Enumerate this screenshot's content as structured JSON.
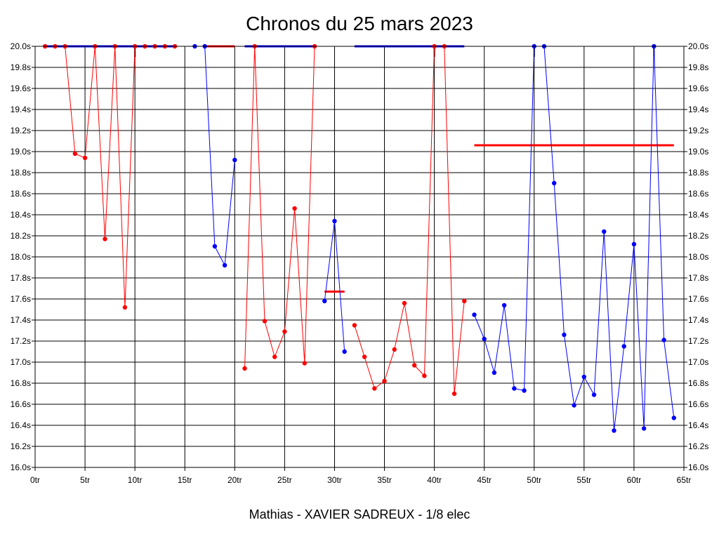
{
  "chart_data": {
    "type": "line",
    "title": "Chronos du 25 mars 2023",
    "subtitle": "Mathias - XAVIER SADREUX - 1/8 elec",
    "xlim": [
      0,
      65
    ],
    "ylim": [
      16.0,
      20.0
    ],
    "x_ticks": [
      0,
      5,
      10,
      15,
      20,
      25,
      30,
      35,
      40,
      45,
      50,
      55,
      60,
      65
    ],
    "x_tick_labels": [
      "0tr",
      "5tr",
      "10tr",
      "15tr",
      "20tr",
      "25tr",
      "30tr",
      "35tr",
      "40tr",
      "45tr",
      "50tr",
      "55tr",
      "60tr",
      "65tr"
    ],
    "y_ticks": [
      16.0,
      16.2,
      16.4,
      16.6,
      16.8,
      17.0,
      17.2,
      17.4,
      17.6,
      17.8,
      18.0,
      18.2,
      18.4,
      18.6,
      18.8,
      19.0,
      19.2,
      19.4,
      19.6,
      19.8,
      20.0
    ],
    "y_tick_labels": [
      "16.0s",
      "16.2s",
      "16.4s",
      "16.6s",
      "16.8s",
      "17.0s",
      "17.2s",
      "17.4s",
      "17.6s",
      "17.8s",
      "18.0s",
      "18.2s",
      "18.4s",
      "18.6s",
      "18.8s",
      "19.0s",
      "19.2s",
      "19.4s",
      "19.6s",
      "19.8s",
      "20.0s"
    ],
    "grid": true,
    "colors": {
      "red": "#ff0000",
      "blue": "#0000ff",
      "gridline": "#000000",
      "darkline": "#000000"
    },
    "series": [
      {
        "color": "red",
        "points": [
          [
            1,
            20.0
          ],
          [
            2,
            20.0
          ],
          [
            3,
            20.0
          ],
          [
            4,
            18.98
          ],
          [
            5,
            18.94
          ],
          [
            6,
            20.0
          ],
          [
            7,
            18.17
          ],
          [
            8,
            20.0
          ],
          [
            9,
            17.52
          ],
          [
            10,
            20.0
          ]
        ]
      },
      {
        "color": "red",
        "points": [
          [
            11,
            20.0
          ],
          [
            12,
            20.0
          ],
          [
            13,
            20.0
          ],
          [
            14,
            20.0
          ]
        ]
      },
      {
        "color": "blue",
        "points": [
          [
            16,
            20.0
          ],
          [
            17,
            20.0
          ],
          [
            18,
            18.1
          ],
          [
            19,
            17.92
          ],
          [
            20,
            18.92
          ]
        ]
      },
      {
        "color": "red",
        "points": [
          [
            21,
            16.94
          ],
          [
            22,
            20.0
          ],
          [
            23,
            17.39
          ],
          [
            24,
            17.05
          ],
          [
            25,
            17.29
          ],
          [
            26,
            18.46
          ],
          [
            27,
            16.99
          ],
          [
            28,
            20.0
          ]
        ]
      },
      {
        "color": "blue",
        "points": [
          [
            29,
            17.58
          ],
          [
            30,
            18.34
          ],
          [
            31,
            17.1
          ]
        ]
      },
      {
        "color": "red",
        "points": [
          [
            32,
            17.35
          ],
          [
            33,
            17.05
          ],
          [
            34,
            16.75
          ],
          [
            35,
            16.82
          ],
          [
            36,
            17.12
          ],
          [
            37,
            17.56
          ],
          [
            38,
            16.97
          ],
          [
            39,
            16.87
          ],
          [
            40,
            20.0
          ],
          [
            41,
            20.0
          ],
          [
            42,
            16.7
          ],
          [
            43,
            17.58
          ]
        ]
      },
      {
        "color": "blue",
        "points": [
          [
            44,
            17.45
          ],
          [
            45,
            17.22
          ],
          [
            46,
            16.9
          ],
          [
            47,
            17.54
          ],
          [
            48,
            16.75
          ],
          [
            49,
            16.73
          ],
          [
            50,
            20.0
          ],
          [
            51,
            20.0
          ],
          [
            52,
            18.7
          ],
          [
            53,
            17.26
          ],
          [
            54,
            16.59
          ],
          [
            55,
            16.86
          ],
          [
            56,
            16.69
          ],
          [
            57,
            18.24
          ],
          [
            58,
            16.35
          ],
          [
            59,
            17.15
          ],
          [
            60,
            18.12
          ],
          [
            61,
            16.37
          ],
          [
            62,
            20.0
          ],
          [
            63,
            17.21
          ],
          [
            64,
            16.47
          ]
        ]
      }
    ],
    "flat_lines": [
      {
        "color": "blue",
        "x1": 1,
        "x2": 14,
        "y": 20.0
      },
      {
        "color": "red",
        "x1": 17,
        "x2": 20,
        "y": 20.0
      },
      {
        "color": "blue",
        "x1": 21,
        "x2": 28,
        "y": 20.0
      },
      {
        "color": "blue",
        "x1": 32,
        "x2": 43,
        "y": 20.0
      },
      {
        "color": "red",
        "x1": 29,
        "x2": 31,
        "y": 17.67
      },
      {
        "color": "red",
        "x1": 44,
        "x2": 64,
        "y": 19.06
      }
    ],
    "vertical_marks": [
      {
        "x": 10,
        "y1": 19.9,
        "y2": 20.0
      },
      {
        "x": 40,
        "y1": 19.9,
        "y2": 20.0
      },
      {
        "x": 50,
        "y1": 19.9,
        "y2": 20.0
      },
      {
        "x": 62,
        "y1": 19.9,
        "y2": 20.0
      }
    ]
  }
}
